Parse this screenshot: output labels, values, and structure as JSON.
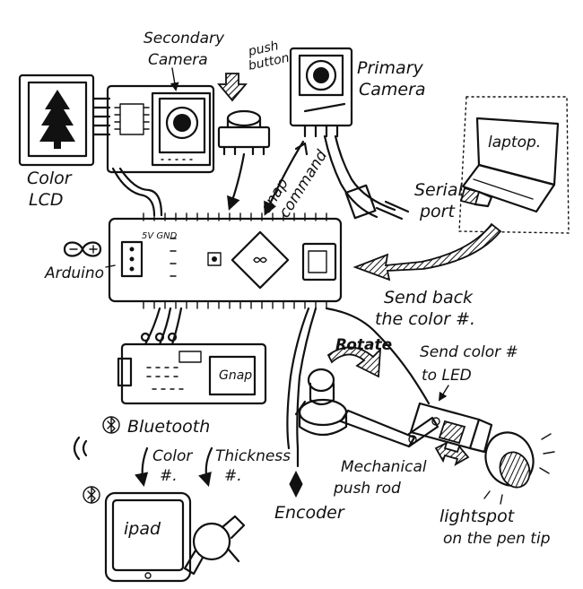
{
  "labels": {
    "secondary_camera": [
      "Secondary",
      "Camera"
    ],
    "push_button": [
      "push",
      "button"
    ],
    "primary_camera": [
      "Primary",
      "Camera"
    ],
    "color_lcd": [
      "Color",
      "LCD"
    ],
    "laptop": "laptop.",
    "snap_command": [
      "snap",
      "command"
    ],
    "serial_port": [
      "Serial",
      "port"
    ],
    "arduino": "Arduino",
    "power_pins": "5V GND",
    "send_back": [
      "Send back",
      "the color #."
    ],
    "gnap": "Gnap",
    "rotate": "Rotate",
    "send_color_led": [
      "Send color #",
      "to LED"
    ],
    "bluetooth": "Bluetooth",
    "color_num": [
      "Color",
      "#."
    ],
    "thickness_num": [
      "Thickness",
      "#."
    ],
    "mechanical_push_rod": [
      "Mechanical",
      "push rod"
    ],
    "ipad": "ipad",
    "encoder": "Encoder",
    "lightspot": [
      "lightspot",
      "on the pen tip"
    ]
  }
}
